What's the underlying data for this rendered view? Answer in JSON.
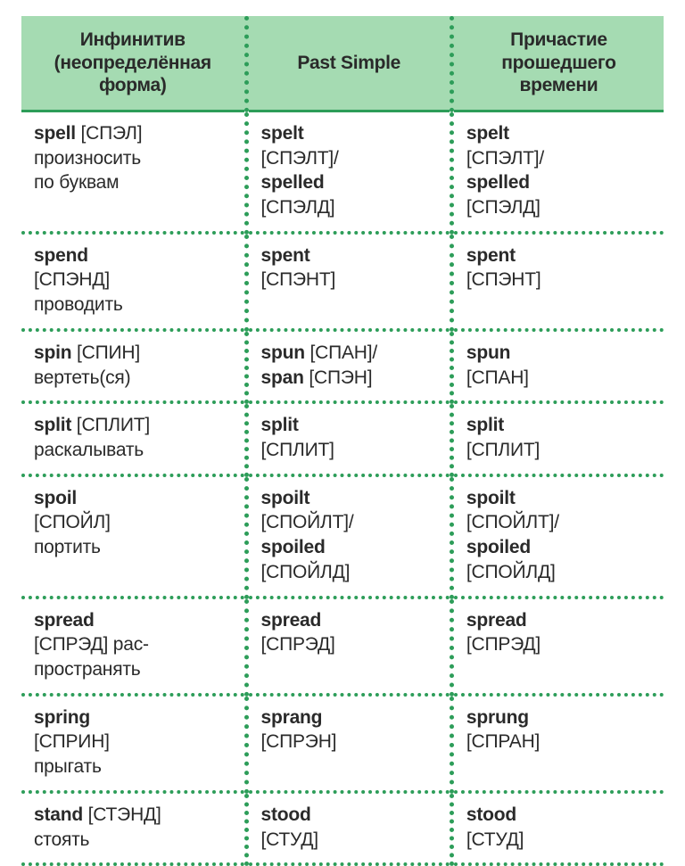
{
  "colors": {
    "header_bg": "#a5dbb2",
    "divider": "#2d9d59",
    "text": "#2a2a2a",
    "background": "#ffffff"
  },
  "font": {
    "body_size_pt": 16,
    "header_size_pt": 16,
    "weight_bold": 700,
    "weight_normal": 400
  },
  "columns": [
    "Инфинитив (неопределённая форма)",
    "Past Simple",
    "Причастие прошедшего времени"
  ],
  "rows": [
    {
      "inf": {
        "word": "spell",
        "phon": "[СПЭЛ]",
        "trans": "произносить по буквам"
      },
      "past": [
        {
          "word": "spelt",
          "phon": "[СПЭЛТ]"
        },
        {
          "word": "spelled",
          "phon": "[СПЭЛД]"
        }
      ],
      "pp": [
        {
          "word": "spelt",
          "phon": "[СПЭЛТ]"
        },
        {
          "word": "spelled",
          "phon": "[СПЭЛД]"
        }
      ]
    },
    {
      "inf": {
        "word": "spend",
        "phon": "[СПЭНД]",
        "trans": "проводить"
      },
      "past": [
        {
          "word": "spent",
          "phon": "[СПЭНТ]"
        }
      ],
      "pp": [
        {
          "word": "spent",
          "phon": "[СПЭНТ]"
        }
      ]
    },
    {
      "inf": {
        "word": "spin",
        "phon": "[СПИН]",
        "trans": "вертеть(ся)"
      },
      "past": [
        {
          "word": "spun",
          "phon": "[СПАН]"
        },
        {
          "word": "span",
          "phon": "[СПЭН]"
        }
      ],
      "past_inline": true,
      "pp": [
        {
          "word": "spun",
          "phon": "[СПАН]"
        }
      ]
    },
    {
      "inf": {
        "word": "split",
        "phon": "[СПЛИТ]",
        "trans": "раскалывать"
      },
      "past": [
        {
          "word": "split",
          "phon": "[СПЛИТ]"
        }
      ],
      "pp": [
        {
          "word": "split",
          "phon": "[СПЛИТ]"
        }
      ]
    },
    {
      "inf": {
        "word": "spoil",
        "phon": "[СПОЙЛ]",
        "trans": "портить"
      },
      "past": [
        {
          "word": "spoilt",
          "phon": "[СПОЙЛТ]"
        },
        {
          "word": "spoiled",
          "phon": "[СПОЙЛД]"
        }
      ],
      "pp": [
        {
          "word": "spoilt",
          "phon": "[СПОЙЛТ]"
        },
        {
          "word": "spoiled",
          "phon": "[СПОЙЛД]"
        }
      ]
    },
    {
      "inf": {
        "word": "spread",
        "phon": "[СПРЭД]",
        "trans": "распространять",
        "trans_hyphen": "рас-|пространять"
      },
      "past": [
        {
          "word": "spread",
          "phon": "[СПРЭД]"
        }
      ],
      "pp": [
        {
          "word": "spread",
          "phon": "[СПРЭД]"
        }
      ]
    },
    {
      "inf": {
        "word": "spring",
        "phon": "[СПРИН]",
        "trans": "прыгать"
      },
      "past": [
        {
          "word": "sprang",
          "phon": "[СПРЭН]"
        }
      ],
      "pp": [
        {
          "word": "sprung",
          "phon": "[СПРАН]"
        }
      ]
    },
    {
      "inf": {
        "word": "stand",
        "phon": "[СТЭНД]",
        "trans": "стоять"
      },
      "past": [
        {
          "word": "stood",
          "phon": "[СТУД]"
        }
      ],
      "pp": [
        {
          "word": "stood",
          "phon": "[СТУД]"
        }
      ]
    }
  ]
}
